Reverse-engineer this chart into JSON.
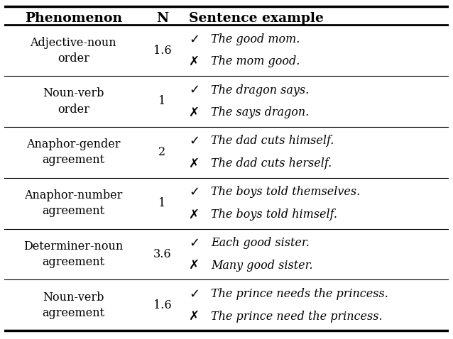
{
  "rows": [
    {
      "phenomenon": "Adjective-noun\norder",
      "n": "1.6",
      "good": "The good mom.",
      "bad": "The mom good."
    },
    {
      "phenomenon": "Noun-verb\norder",
      "n": "1",
      "good": "The dragon says.",
      "bad": "The says dragon."
    },
    {
      "phenomenon": "Anaphor-gender\nagreement",
      "n": "2",
      "good": "The dad cuts himself.",
      "bad": "The dad cuts herself."
    },
    {
      "phenomenon": "Anaphor-number\nagreement",
      "n": "1",
      "good": "The boys told themselves.",
      "bad": "The boys told himself."
    },
    {
      "phenomenon": "Determiner-noun\nagreement",
      "n": "3.6",
      "good": "Each good sister.",
      "bad": "Many good sister."
    },
    {
      "phenomenon": "Noun-verb\nagreement",
      "n": "1.6",
      "good": "The prince needs the princess.",
      "bad": "The prince need the princess."
    }
  ],
  "headers": [
    "Phenomenon",
    "N",
    "Sentence example"
  ],
  "check_mark": "✓",
  "cross_mark": "✗",
  "bg_color": "#ffffff",
  "header_fontsize": 13.5,
  "cell_fontsize": 11.5,
  "symbol_fontsize": 13
}
